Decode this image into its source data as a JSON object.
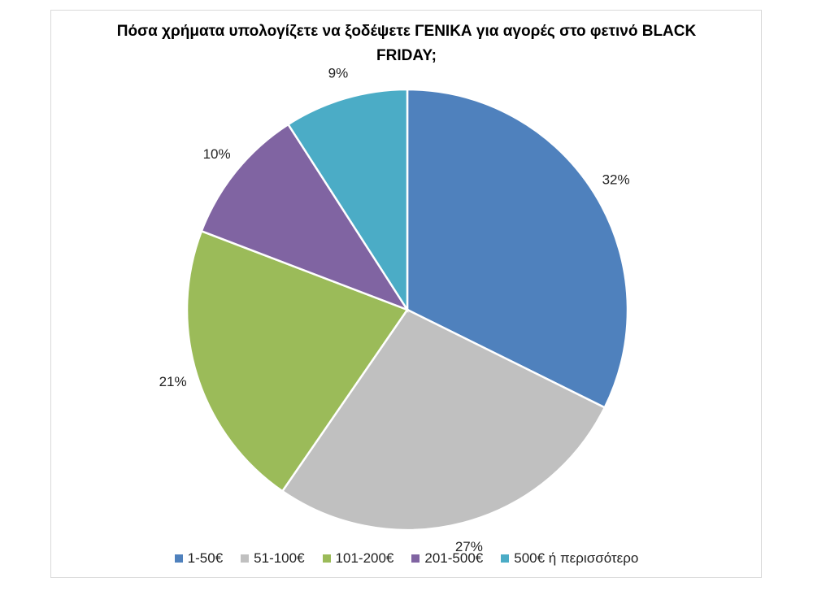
{
  "chart_data": {
    "type": "pie",
    "title": "Πόσα χρήματα υπολογίζετε να ξοδέψετε ΓΕΝΙΚΑ για αγορές στο φετινό BLACK FRIDAY;",
    "categories": [
      "1-50€",
      "51-100€",
      "101-200€",
      "201-500€",
      "500€ ή περισσότερο"
    ],
    "values": [
      32,
      27,
      21,
      10,
      9
    ],
    "value_labels": [
      "32%",
      "27%",
      "21%",
      "10%",
      "9%"
    ],
    "colors": [
      "#4f81bd",
      "#c0c0c0",
      "#9bbb59",
      "#8064a2",
      "#4bacc6"
    ],
    "legend": "bottom"
  }
}
